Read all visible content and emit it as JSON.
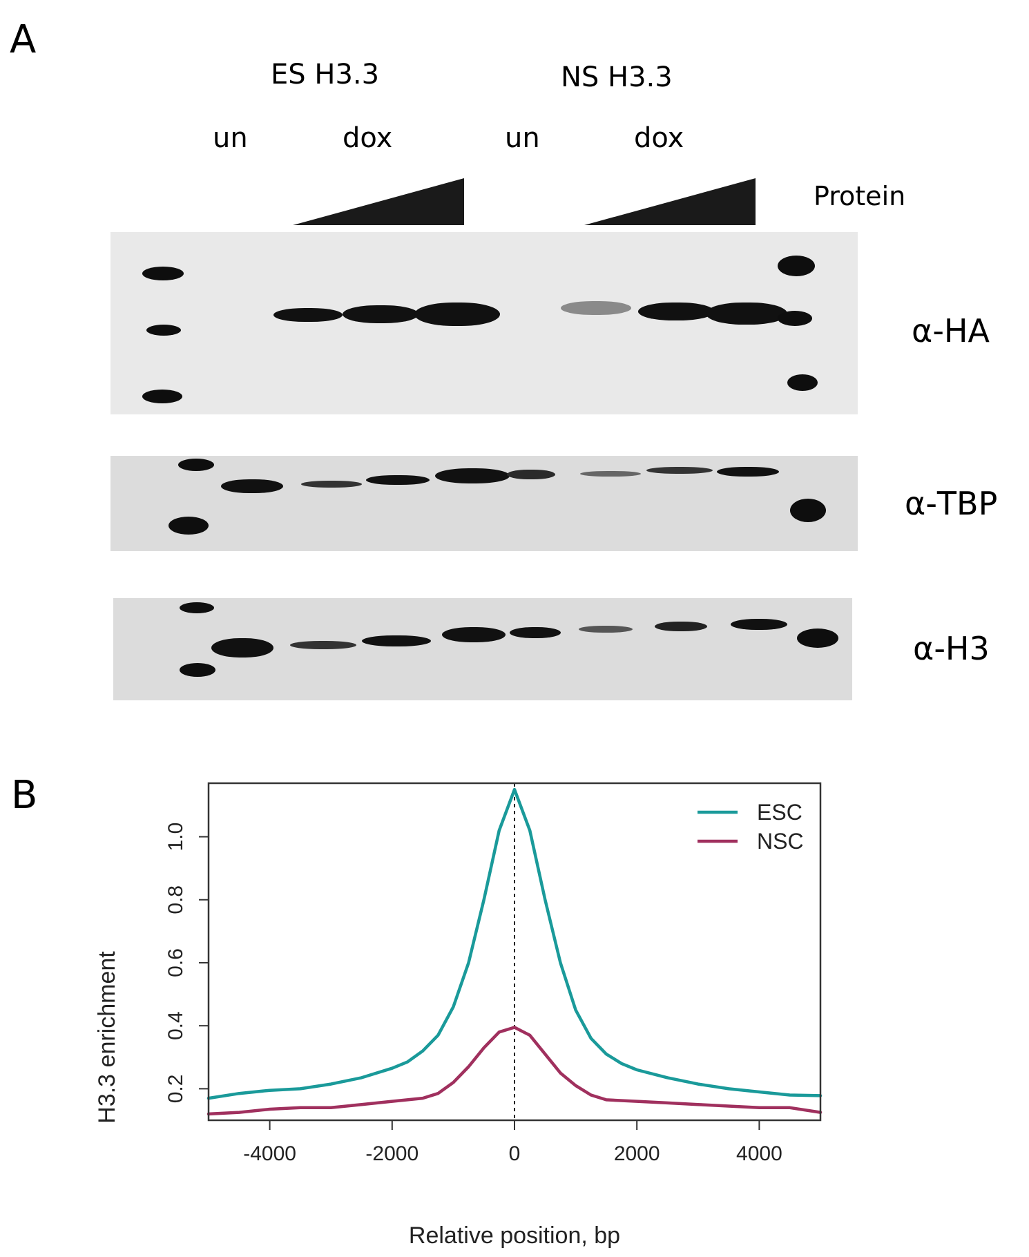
{
  "panel_a": {
    "letter": "A",
    "groups": [
      "ES H3.3",
      "NS H3.3"
    ],
    "conditions": [
      "un",
      "dox",
      "un",
      "dox"
    ],
    "protein_label": "Protein",
    "antibodies": [
      "α-HA",
      "α-TBP",
      "α-H3"
    ]
  },
  "panel_b": {
    "letter": "B"
  },
  "chart_data": {
    "type": "line",
    "title": "",
    "xlabel": "Relative position, bp",
    "ylabel": "H3.3 enrichment",
    "xlim": [
      -5000,
      5000
    ],
    "ylim": [
      0.1,
      1.17
    ],
    "xticks": [
      -4000,
      -2000,
      0,
      2000,
      4000
    ],
    "yticks": [
      0.2,
      0.4,
      0.6,
      0.8,
      1.0
    ],
    "ytick_labels": [
      "0.2",
      "0.4",
      "0.6",
      "0.8",
      "1.0"
    ],
    "vline_x": 0,
    "legend_position": "top-right",
    "series": [
      {
        "name": "ESC",
        "color": "#1a9a9a",
        "x": [
          -5000,
          -4500,
          -4000,
          -3500,
          -3000,
          -2500,
          -2000,
          -1750,
          -1500,
          -1250,
          -1000,
          -750,
          -500,
          -250,
          0,
          250,
          500,
          750,
          1000,
          1250,
          1500,
          1750,
          2000,
          2500,
          3000,
          3500,
          4000,
          4500,
          5000
        ],
        "y": [
          0.17,
          0.185,
          0.195,
          0.2,
          0.215,
          0.235,
          0.265,
          0.285,
          0.32,
          0.37,
          0.46,
          0.6,
          0.8,
          1.02,
          1.15,
          1.02,
          0.8,
          0.6,
          0.45,
          0.36,
          0.31,
          0.28,
          0.26,
          0.235,
          0.215,
          0.2,
          0.19,
          0.18,
          0.178
        ]
      },
      {
        "name": "NSC",
        "color": "#a0305e",
        "x": [
          -5000,
          -4500,
          -4000,
          -3500,
          -3000,
          -2500,
          -2000,
          -1500,
          -1250,
          -1000,
          -750,
          -500,
          -250,
          0,
          250,
          500,
          750,
          1000,
          1250,
          1500,
          2000,
          2500,
          3000,
          3500,
          4000,
          4500,
          5000
        ],
        "y": [
          0.12,
          0.125,
          0.135,
          0.14,
          0.14,
          0.15,
          0.16,
          0.17,
          0.185,
          0.22,
          0.27,
          0.33,
          0.38,
          0.395,
          0.37,
          0.31,
          0.25,
          0.21,
          0.18,
          0.165,
          0.16,
          0.155,
          0.15,
          0.145,
          0.14,
          0.14,
          0.125
        ]
      }
    ]
  }
}
